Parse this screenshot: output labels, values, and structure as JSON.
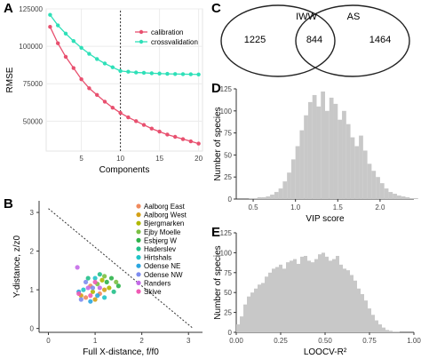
{
  "panel_labels": {
    "A": "A",
    "B": "B",
    "C": "C",
    "D": "D",
    "E": "E"
  },
  "chart_data": [
    {
      "panel": "A",
      "type": "line",
      "xlabel": "Components",
      "ylabel": "RMSE",
      "xlim": [
        0.5,
        20.5
      ],
      "ylim": [
        30000,
        125000
      ],
      "xticks": [
        5,
        10,
        15,
        20
      ],
      "yticks": [
        50000,
        75000,
        100000,
        125000
      ],
      "ytick_labels": [
        "50000",
        "75000",
        "100000",
        "125000"
      ],
      "vline_x": 10,
      "legend_position": "top-right",
      "grid": true,
      "x": [
        1,
        2,
        3,
        4,
        5,
        6,
        7,
        8,
        9,
        10,
        11,
        12,
        13,
        14,
        15,
        16,
        17,
        18,
        19,
        20
      ],
      "series": [
        {
          "name": "calibration",
          "color": "#e8506f",
          "values": [
            113000,
            102000,
            93000,
            85500,
            78000,
            72000,
            67500,
            63000,
            59000,
            55500,
            52500,
            50000,
            47500,
            45000,
            43000,
            41000,
            39500,
            38000,
            36500,
            35000
          ]
        },
        {
          "name": "crossvalidation",
          "color": "#2ee0b8",
          "values": [
            121000,
            114000,
            108500,
            103500,
            99000,
            95000,
            91500,
            88500,
            86000,
            83500,
            83000,
            82500,
            82300,
            82000,
            81800,
            81600,
            81500,
            81400,
            81300,
            81200
          ]
        }
      ]
    },
    {
      "panel": "B",
      "type": "scatter",
      "xlabel": "Full X-distance, f/f0",
      "ylabel": "Y-distance, z/z0",
      "xlim": [
        -0.2,
        3.3
      ],
      "ylim": [
        -0.1,
        3.3
      ],
      "xticks": [
        0,
        1,
        2,
        3
      ],
      "yticks": [
        0,
        1,
        2,
        3
      ],
      "reference_line": {
        "from": [
          0,
          3.1
        ],
        "to": [
          3.1,
          0
        ]
      },
      "legend_position": "top-right",
      "series": [
        {
          "name": "Aalborg East",
          "color": "#f08a5d",
          "points": [
            [
              0.9,
              1.1
            ],
            [
              1.1,
              0.9
            ],
            [
              0.8,
              0.8
            ]
          ]
        },
        {
          "name": "Aalborg West",
          "color": "#d4a017",
          "points": [
            [
              0.7,
              0.85
            ],
            [
              1.0,
              0.75
            ],
            [
              1.2,
              1.0
            ]
          ]
        },
        {
          "name": "Bjergmarken",
          "color": "#b0b800",
          "points": [
            [
              1.3,
              1.05
            ],
            [
              1.15,
              1.25
            ],
            [
              0.95,
              0.95
            ]
          ]
        },
        {
          "name": "Ejby Moelle",
          "color": "#7bc043",
          "points": [
            [
              1.45,
              1.2
            ],
            [
              1.2,
              1.35
            ],
            [
              1.05,
              1.15
            ]
          ]
        },
        {
          "name": "Esbjerg W",
          "color": "#2fb24a",
          "points": [
            [
              1.35,
              1.3
            ],
            [
              1.5,
              1.1
            ],
            [
              1.25,
              1.2
            ]
          ]
        },
        {
          "name": "Haderslev",
          "color": "#22c08a",
          "points": [
            [
              1.1,
              1.4
            ],
            [
              1.4,
              0.95
            ],
            [
              0.85,
              1.3
            ]
          ]
        },
        {
          "name": "Hirtshals",
          "color": "#20c4c8",
          "points": [
            [
              0.75,
              1.0
            ],
            [
              1.0,
              1.3
            ],
            [
              1.2,
              0.8
            ]
          ]
        },
        {
          "name": "Odense NE",
          "color": "#2aa6e0",
          "points": [
            [
              0.9,
              0.7
            ],
            [
              0.65,
              0.95
            ],
            [
              1.05,
              0.85
            ]
          ]
        },
        {
          "name": "Odense NW",
          "color": "#7d8cf0",
          "points": [
            [
              0.8,
              1.2
            ],
            [
              0.7,
              0.75
            ],
            [
              0.95,
              1.05
            ]
          ]
        },
        {
          "name": "Randers",
          "color": "#c46ae8",
          "points": [
            [
              0.62,
              1.58
            ],
            [
              0.85,
              1.05
            ],
            [
              1.1,
              1.05
            ]
          ]
        },
        {
          "name": "Skive",
          "color": "#f05ab4",
          "points": [
            [
              0.65,
              0.9
            ],
            [
              0.9,
              0.85
            ],
            [
              1.0,
              1.2
            ]
          ]
        }
      ]
    },
    {
      "panel": "C",
      "type": "venn",
      "sets": [
        {
          "name": "IWW",
          "only": 1225
        },
        {
          "name": "AS",
          "only": 1464
        }
      ],
      "intersection": 844
    },
    {
      "panel": "D",
      "type": "bar",
      "subtype": "histogram",
      "xlabel": "VIP score",
      "ylabel": "Number of species",
      "xlim": [
        0.3,
        2.4
      ],
      "ylim": [
        0,
        125
      ],
      "xticks": [
        0.5,
        1.0,
        1.5,
        2.0
      ],
      "xtick_labels": [
        "0.5",
        "1.0",
        "1.5",
        "2.0"
      ],
      "yticks": [
        0,
        25,
        50,
        75,
        100,
        125
      ],
      "bin_start": 0.45,
      "bin_width": 0.05,
      "color": "#c8c8c8",
      "values": [
        1,
        1,
        2,
        2,
        3,
        5,
        8,
        12,
        20,
        30,
        45,
        60,
        78,
        95,
        110,
        118,
        105,
        122,
        100,
        115,
        108,
        90,
        100,
        85,
        70,
        60,
        72,
        55,
        40,
        32,
        25,
        18,
        12,
        8,
        6,
        4,
        3,
        2,
        1,
        1
      ]
    },
    {
      "panel": "E",
      "type": "bar",
      "subtype": "histogram",
      "xlabel": "LOOCV-R²",
      "ylabel": "Number of species",
      "xlim": [
        0,
        1
      ],
      "ylim": [
        0,
        125
      ],
      "xticks": [
        0.0,
        0.25,
        0.5,
        0.75,
        1.0
      ],
      "xtick_labels": [
        "0.00",
        "0.25",
        "0.50",
        "0.75",
        "1.00"
      ],
      "yticks": [
        0,
        25,
        50,
        75,
        100,
        125
      ],
      "bin_start": 0.0,
      "bin_width": 0.02,
      "color": "#c8c8c8",
      "values": [
        10,
        20,
        35,
        45,
        50,
        55,
        60,
        62,
        70,
        75,
        80,
        82,
        85,
        80,
        88,
        90,
        92,
        86,
        95,
        96,
        90,
        88,
        92,
        98,
        100,
        95,
        90,
        92,
        96,
        85,
        80,
        78,
        72,
        65,
        55,
        48,
        40,
        30,
        22,
        15,
        10,
        6,
        3,
        2,
        1,
        1,
        0,
        0,
        0,
        0
      ]
    }
  ]
}
